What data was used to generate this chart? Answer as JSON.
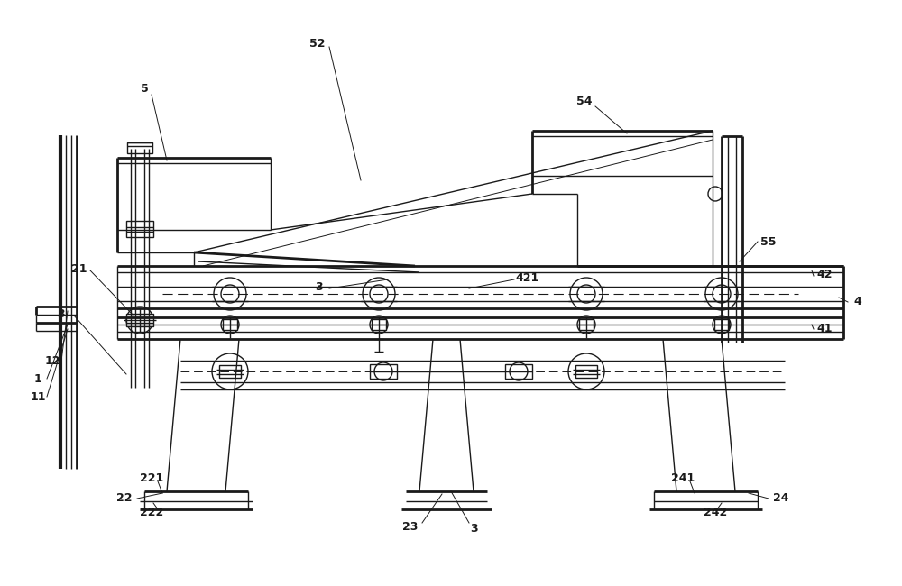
{
  "bg_color": "#ffffff",
  "lc": "#1a1a1a",
  "lw": 1.0,
  "tlw": 2.0,
  "figsize": [
    10.0,
    6.5
  ],
  "dpi": 100
}
